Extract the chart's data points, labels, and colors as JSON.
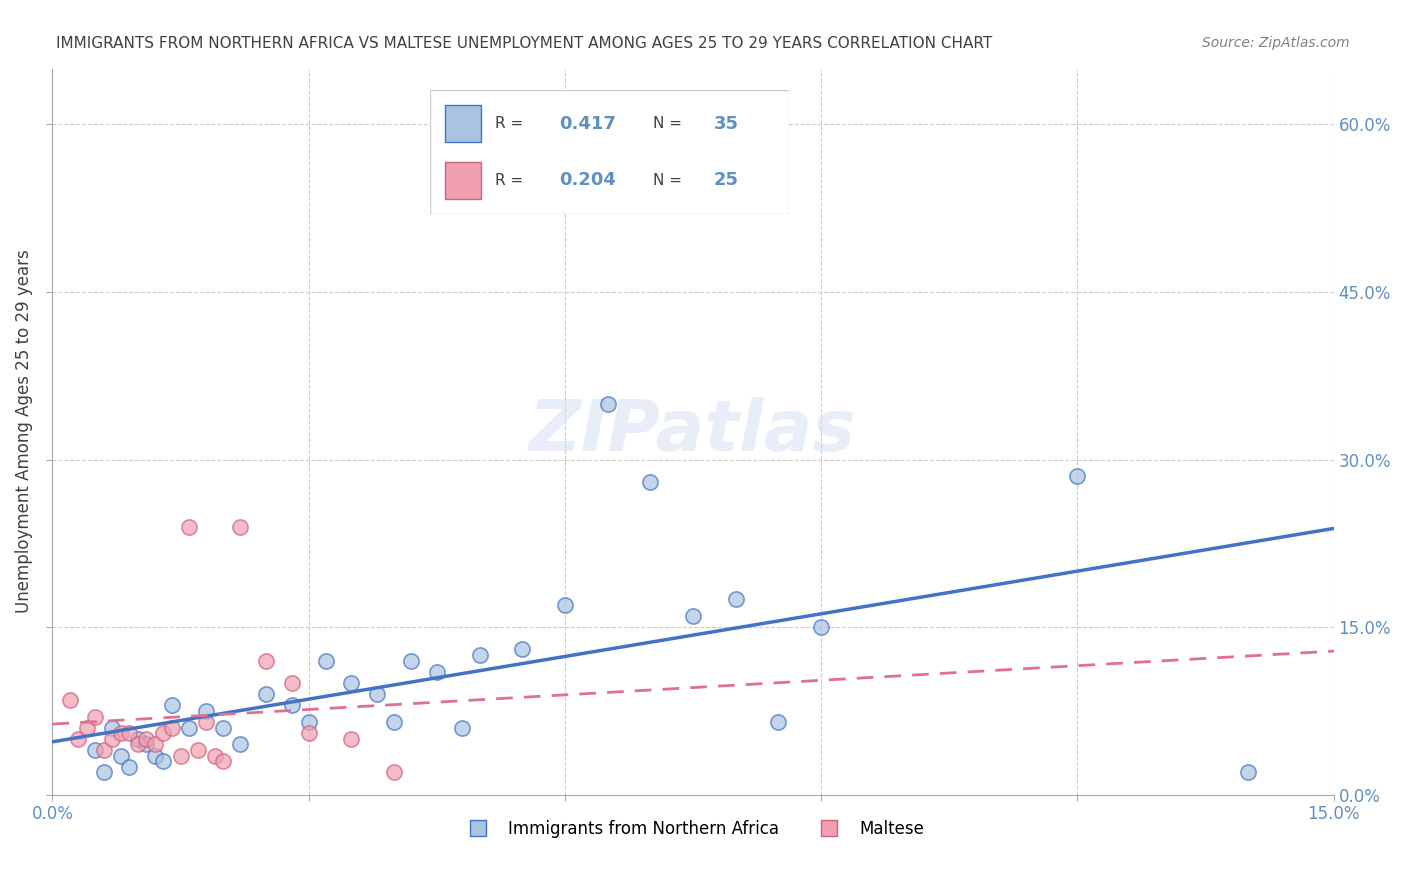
{
  "title": "IMMIGRANTS FROM NORTHERN AFRICA VS MALTESE UNEMPLOYMENT AMONG AGES 25 TO 29 YEARS CORRELATION CHART",
  "source": "Source: ZipAtlas.com",
  "ylabel": "Unemployment Among Ages 25 to 29 years",
  "xlabel_blue": "Immigrants from Northern Africa",
  "xlabel_pink": "Maltese",
  "xlim": [
    0.0,
    0.15
  ],
  "ylim": [
    0.0,
    0.65
  ],
  "yticks": [
    0.0,
    0.15,
    0.3,
    0.45,
    0.6
  ],
  "ytick_labels": [
    "0.0%",
    "15.0%",
    "30.0%",
    "45.0%",
    "60.0%"
  ],
  "xticks": [
    0.0,
    0.03,
    0.06,
    0.09,
    0.12,
    0.15
  ],
  "xtick_labels": [
    "0.0%",
    "",
    "",
    "",
    "",
    "15.0%"
  ],
  "legend_blue_R": "0.417",
  "legend_blue_N": "35",
  "legend_pink_R": "0.204",
  "legend_pink_N": "25",
  "watermark": "ZIPatlas",
  "blue_color": "#a8c4e0",
  "pink_color": "#f0a0b0",
  "line_blue": "#4472c4",
  "line_pink": "#e07090",
  "title_color": "#404040",
  "axis_color": "#6090c0",
  "blue_scatter_x": [
    0.005,
    0.006,
    0.007,
    0.008,
    0.009,
    0.01,
    0.011,
    0.012,
    0.013,
    0.014,
    0.016,
    0.018,
    0.02,
    0.022,
    0.025,
    0.028,
    0.03,
    0.032,
    0.035,
    0.038,
    0.04,
    0.042,
    0.045,
    0.048,
    0.05,
    0.055,
    0.06,
    0.065,
    0.07,
    0.075,
    0.08,
    0.085,
    0.09,
    0.12,
    0.14
  ],
  "blue_scatter_y": [
    0.04,
    0.02,
    0.06,
    0.035,
    0.025,
    0.05,
    0.045,
    0.035,
    0.03,
    0.08,
    0.06,
    0.075,
    0.06,
    0.045,
    0.09,
    0.08,
    0.065,
    0.12,
    0.1,
    0.09,
    0.065,
    0.12,
    0.11,
    0.06,
    0.125,
    0.13,
    0.17,
    0.35,
    0.28,
    0.16,
    0.175,
    0.065,
    0.15,
    0.285,
    0.02
  ],
  "pink_scatter_x": [
    0.002,
    0.003,
    0.004,
    0.005,
    0.006,
    0.007,
    0.008,
    0.009,
    0.01,
    0.011,
    0.012,
    0.013,
    0.014,
    0.015,
    0.016,
    0.017,
    0.018,
    0.019,
    0.02,
    0.022,
    0.025,
    0.028,
    0.03,
    0.035,
    0.04
  ],
  "pink_scatter_y": [
    0.085,
    0.05,
    0.06,
    0.07,
    0.04,
    0.05,
    0.055,
    0.055,
    0.045,
    0.05,
    0.045,
    0.055,
    0.06,
    0.035,
    0.24,
    0.04,
    0.065,
    0.035,
    0.03,
    0.24,
    0.12,
    0.1,
    0.055,
    0.05,
    0.02
  ]
}
